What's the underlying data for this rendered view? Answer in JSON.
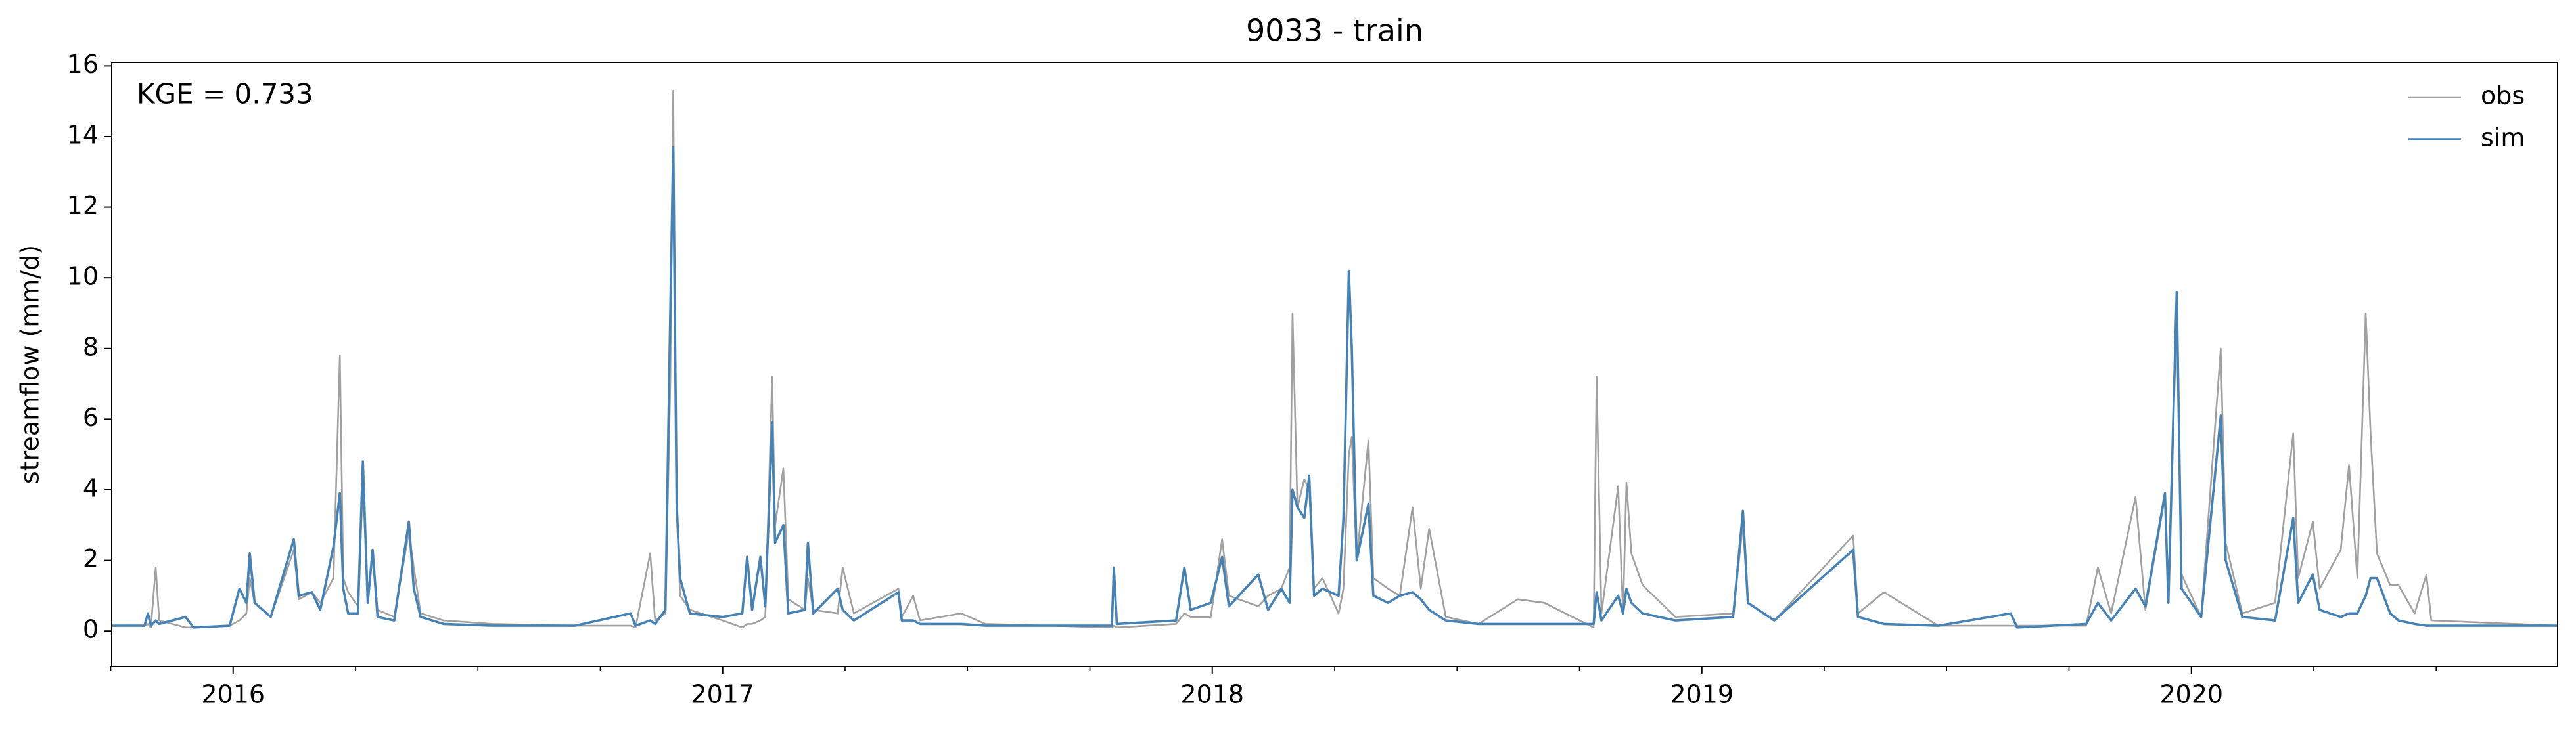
{
  "chart_data": {
    "type": "line",
    "title": "9033 - train",
    "ylabel": "streamflow (mm/d)",
    "annotation": "KGE = 0.733",
    "legend": "upper right",
    "grid": false,
    "xlim": [
      2015.752,
      2020.748
    ],
    "xticks": [
      2016,
      2017,
      2018,
      2019,
      2020
    ],
    "xminorticks": [
      2015.75,
      2016.25,
      2016.5,
      2016.75,
      2017.25,
      2017.5,
      2017.75,
      2018.25,
      2018.5,
      2018.75,
      2019.25,
      2019.5,
      2019.75,
      2020.25,
      2020.5
    ],
    "ylim": [
      -1,
      16.1
    ],
    "yticks": [
      0,
      2,
      4,
      6,
      8,
      10,
      12,
      14,
      16
    ],
    "x": [
      2015.752,
      2015.819,
      2015.826,
      2015.832,
      2015.842,
      2015.849,
      2015.903,
      2015.919,
      2015.993,
      2016.013,
      2016.027,
      2016.034,
      2016.044,
      2016.077,
      2016.124,
      2016.134,
      2016.161,
      2016.178,
      2016.205,
      2016.218,
      2016.225,
      2016.235,
      2016.255,
      2016.265,
      2016.275,
      2016.285,
      2016.295,
      2016.329,
      2016.359,
      2016.369,
      2016.383,
      2016.43,
      2016.53,
      2016.698,
      2016.812,
      2016.822,
      2016.852,
      2016.862,
      2016.883,
      2016.893,
      2016.899,
      2016.906,
      2016.913,
      2016.933,
      2017.0,
      2017.04,
      2017.05,
      2017.06,
      2017.077,
      2017.087,
      2017.101,
      2017.107,
      2017.124,
      2017.134,
      2017.168,
      2017.174,
      2017.185,
      2017.235,
      2017.245,
      2017.268,
      2017.359,
      2017.366,
      2017.389,
      2017.403,
      2017.487,
      2017.537,
      2017.795,
      2017.799,
      2017.805,
      2017.926,
      2017.943,
      2017.956,
      2017.997,
      2018.02,
      2018.034,
      2018.094,
      2018.114,
      2018.141,
      2018.158,
      2018.164,
      2018.174,
      2018.188,
      2018.198,
      2018.208,
      2018.225,
      2018.258,
      2018.268,
      2018.279,
      2018.285,
      2018.295,
      2018.319,
      2018.329,
      2018.359,
      2018.383,
      2018.409,
      2018.426,
      2018.443,
      2018.477,
      2018.544,
      2018.624,
      2018.678,
      2018.779,
      2018.785,
      2018.795,
      2018.829,
      2018.839,
      2018.846,
      2018.856,
      2018.879,
      2018.946,
      2019.064,
      2019.084,
      2019.094,
      2019.148,
      2019.309,
      2019.319,
      2019.372,
      2019.483,
      2019.631,
      2019.644,
      2019.785,
      2019.809,
      2019.836,
      2019.886,
      2019.906,
      2019.946,
      2019.953,
      2019.97,
      2019.98,
      2020.02,
      2020.06,
      2020.07,
      2020.104,
      2020.171,
      2020.208,
      2020.218,
      2020.248,
      2020.262,
      2020.305,
      2020.322,
      2020.339,
      2020.356,
      2020.366,
      2020.379,
      2020.406,
      2020.423,
      2020.456,
      2020.48,
      2020.49,
      2020.748
    ],
    "series": [
      {
        "name": "obs",
        "color": "#a0a0a0",
        "values": [
          0.15,
          0.15,
          0.2,
          0.1,
          1.8,
          0.3,
          0.1,
          0.1,
          0.15,
          0.3,
          0.5,
          1.5,
          0.8,
          0.4,
          2.3,
          0.9,
          1.1,
          0.8,
          1.5,
          7.8,
          1.5,
          1.1,
          0.7,
          4.2,
          1.0,
          2.2,
          0.6,
          0.4,
          2.8,
          1.8,
          0.5,
          0.3,
          0.2,
          0.15,
          0.15,
          0.1,
          2.2,
          0.3,
          0.5,
          7.0,
          15.3,
          3.5,
          1.0,
          0.6,
          0.3,
          0.1,
          0.2,
          0.2,
          0.3,
          0.4,
          7.2,
          3.0,
          4.6,
          0.9,
          0.6,
          1.5,
          0.6,
          0.5,
          1.8,
          0.5,
          1.2,
          0.4,
          1.0,
          0.3,
          0.5,
          0.2,
          0.1,
          0.15,
          0.1,
          0.2,
          0.5,
          0.4,
          0.4,
          2.6,
          1.0,
          0.7,
          1.0,
          1.2,
          1.8,
          9.0,
          3.5,
          4.3,
          4.0,
          1.2,
          1.5,
          0.5,
          1.2,
          5.0,
          5.5,
          2.0,
          5.4,
          1.5,
          1.2,
          1.0,
          3.5,
          1.2,
          2.9,
          0.4,
          0.2,
          0.9,
          0.8,
          0.1,
          7.2,
          0.5,
          4.1,
          0.5,
          4.2,
          2.2,
          1.3,
          0.4,
          0.5,
          3.0,
          0.8,
          0.3,
          2.7,
          0.5,
          1.1,
          0.15,
          0.15,
          0.15,
          0.15,
          1.8,
          0.5,
          3.8,
          0.6,
          3.8,
          1.0,
          9.5,
          1.6,
          0.4,
          8.0,
          2.5,
          0.5,
          0.8,
          5.6,
          1.5,
          3.1,
          1.2,
          2.3,
          4.7,
          1.5,
          9.0,
          5.6,
          2.2,
          1.3,
          1.3,
          0.5,
          1.6,
          0.3,
          0.15
        ]
      },
      {
        "name": "sim",
        "color": "#4682b4",
        "values": [
          0.15,
          0.15,
          0.5,
          0.15,
          0.3,
          0.2,
          0.4,
          0.1,
          0.15,
          1.2,
          0.8,
          2.2,
          0.8,
          0.4,
          2.6,
          1.0,
          1.1,
          0.6,
          2.4,
          3.9,
          1.2,
          0.5,
          0.5,
          4.8,
          0.8,
          2.3,
          0.4,
          0.3,
          3.1,
          1.2,
          0.4,
          0.2,
          0.15,
          0.15,
          0.5,
          0.15,
          0.3,
          0.2,
          0.6,
          9.0,
          13.7,
          3.6,
          1.5,
          0.5,
          0.4,
          0.5,
          2.1,
          0.6,
          2.1,
          0.7,
          5.9,
          2.5,
          3.0,
          0.5,
          0.6,
          2.5,
          0.5,
          1.2,
          0.6,
          0.3,
          1.1,
          0.3,
          0.3,
          0.2,
          0.2,
          0.15,
          0.15,
          1.8,
          0.2,
          0.3,
          1.8,
          0.6,
          0.8,
          2.1,
          0.7,
          1.6,
          0.6,
          1.2,
          0.8,
          4.0,
          3.5,
          3.2,
          4.4,
          1.0,
          1.2,
          1.0,
          3.2,
          10.2,
          8.0,
          2.0,
          3.6,
          1.0,
          0.8,
          1.0,
          1.1,
          0.9,
          0.6,
          0.3,
          0.2,
          0.2,
          0.2,
          0.2,
          1.1,
          0.3,
          1.0,
          0.5,
          1.2,
          0.8,
          0.5,
          0.3,
          0.4,
          3.4,
          0.8,
          0.3,
          2.3,
          0.4,
          0.2,
          0.15,
          0.5,
          0.1,
          0.2,
          0.8,
          0.3,
          1.2,
          0.7,
          3.9,
          0.8,
          9.6,
          1.2,
          0.4,
          6.1,
          2.0,
          0.4,
          0.3,
          3.2,
          0.8,
          1.6,
          0.6,
          0.4,
          0.5,
          0.5,
          1.0,
          1.5,
          1.5,
          0.5,
          0.3,
          0.2,
          0.15,
          0.15,
          0.15
        ]
      }
    ]
  }
}
